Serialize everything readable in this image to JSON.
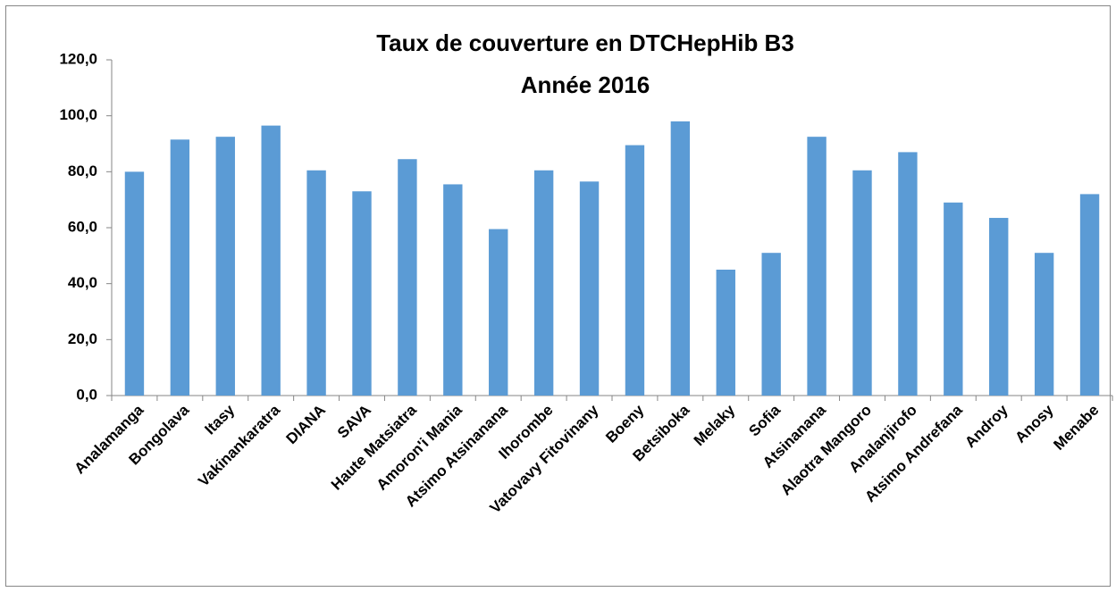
{
  "chart_data": {
    "type": "bar",
    "title": "Taux de couverture en DTCHepHib B3",
    "subtitle": "Année 2016",
    "categories": [
      "Analamanga",
      "Bongolava",
      "Itasy",
      "Vakinankaratra",
      "DIANA",
      "SAVA",
      "Haute Matsiatra",
      "Amoron'i Mania",
      "Atsimo Atsinanana",
      "Ihorombe",
      "Vatovavy Fitovinany",
      "Boeny",
      "Betsiboka",
      "Melaky",
      "Sofia",
      "Atsinanana",
      "Alaotra Mangoro",
      "Analanjirofo",
      "Atsimo Andrefana",
      "Androy",
      "Anosy",
      "Menabe"
    ],
    "values": [
      80,
      91.5,
      92.5,
      96.5,
      80.5,
      73,
      84.5,
      75.5,
      59.5,
      80.5,
      76.5,
      89.5,
      98,
      45,
      51,
      92.5,
      80.5,
      87,
      69,
      63.5,
      51,
      72
    ],
    "color": "#5b9bd5",
    "ylim": [
      0,
      120
    ],
    "yticks": [
      {
        "value": 0,
        "label": "0,0"
      },
      {
        "value": 20,
        "label": "20,0"
      },
      {
        "value": 40,
        "label": "40,0"
      },
      {
        "value": 60,
        "label": "60,0"
      },
      {
        "value": 80,
        "label": "80,0"
      },
      {
        "value": 100,
        "label": "100,0"
      },
      {
        "value": 120,
        "label": "120,0"
      }
    ],
    "grid": false
  }
}
